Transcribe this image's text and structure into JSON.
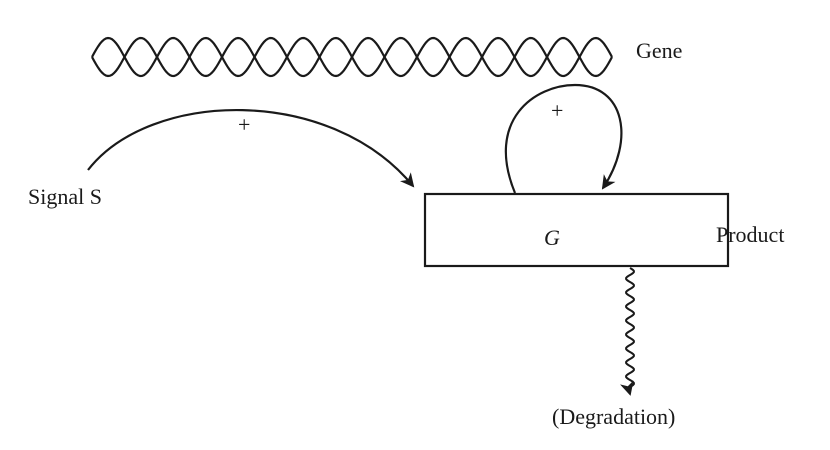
{
  "labels": {
    "gene": "Gene",
    "signal": "Signal S",
    "product": "Product",
    "box_symbol": "G",
    "degradation": "(Degradation)",
    "signal_effect": "+",
    "feedback_effect": "+"
  },
  "colors": {
    "ink": "#1a1a1a",
    "background": "#ffffff"
  }
}
